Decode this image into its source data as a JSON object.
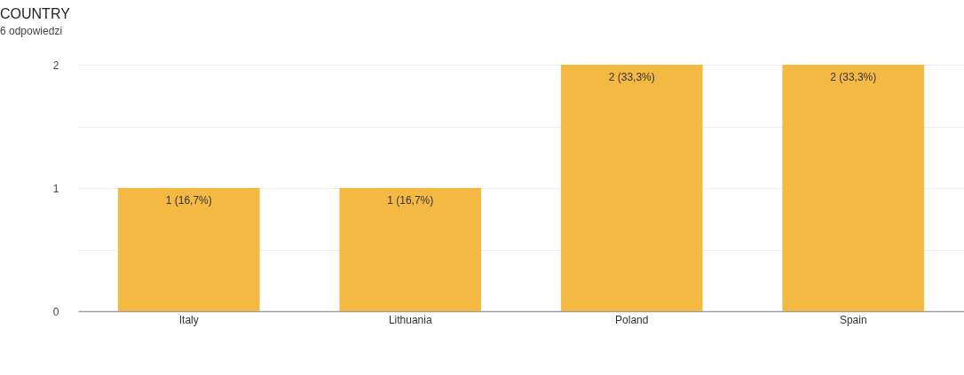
{
  "chart_data": {
    "type": "bar",
    "title": "COUNTRY",
    "subtitle": "6 odpowiedzi",
    "categories": [
      "Italy",
      "Lithuania",
      "Poland",
      "Spain"
    ],
    "values": [
      1,
      1,
      2,
      2
    ],
    "value_labels": [
      "1 (16,7%)",
      "1 (16,7%)",
      "2 (33,3%)",
      "2 (33,3%)"
    ],
    "color": "#f4b942",
    "ylim": [
      0,
      2
    ],
    "yticks": [
      0,
      {
        "value": 0.5,
        "label": null
      },
      1,
      {
        "value": 1.5,
        "label": null
      },
      2
    ],
    "grid": "y"
  }
}
